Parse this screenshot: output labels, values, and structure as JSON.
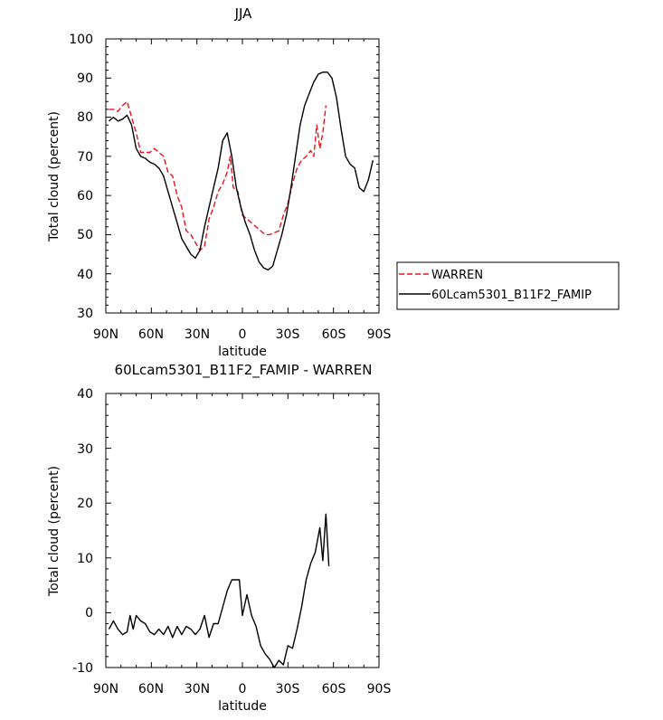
{
  "chart_data": [
    {
      "type": "line",
      "title": "JJA",
      "xlabel": "latitude",
      "ylabel": "Total cloud (percent)",
      "xlim": [
        -90,
        90
      ],
      "ylim": [
        30,
        100
      ],
      "x_ticks": [
        -90,
        -60,
        -30,
        0,
        30,
        60,
        90
      ],
      "x_tick_labels": [
        "90N",
        "60N",
        "30N",
        "0",
        "30S",
        "60S",
        "90S"
      ],
      "y_ticks": [
        30,
        40,
        50,
        60,
        70,
        80,
        90,
        100
      ],
      "y_tick_labels": [
        "30",
        "40",
        "50",
        "60",
        "70",
        "80",
        "90",
        "100"
      ],
      "legend": {
        "position": "right",
        "entries": [
          "WARREN",
          "60Lcam5301_B11F2_FAMIP"
        ]
      },
      "series": [
        {
          "name": "WARREN",
          "color": "#e8141b",
          "style": "dashed",
          "x": [
            -88,
            -85,
            -82,
            -79,
            -76,
            -73,
            -70,
            -67,
            -64,
            -61,
            -58,
            -55,
            -52,
            -49,
            -46,
            -43,
            -40,
            -37,
            -34,
            -31,
            -28,
            -25,
            -22,
            -19,
            -16,
            -13,
            -10,
            -8,
            -6,
            -3,
            0,
            3,
            6,
            9,
            12,
            15,
            18,
            21,
            24,
            27,
            30,
            33,
            36,
            39,
            42,
            45,
            47,
            49,
            51,
            53,
            55,
            57
          ],
          "y": [
            82,
            82,
            81.5,
            83,
            84,
            80,
            76,
            71,
            71,
            71,
            72,
            71,
            70,
            66,
            65,
            60,
            57,
            51,
            50,
            48,
            46,
            47,
            54,
            57,
            61,
            63,
            66,
            70,
            62,
            61,
            55,
            54,
            53,
            52,
            51,
            50,
            50,
            50.5,
            51,
            55,
            58,
            63,
            67,
            69,
            70,
            71.5,
            70,
            78,
            72,
            76,
            83,
            null
          ]
        },
        {
          "name": "60Lcam5301_B11F2_FAMIP",
          "color": "#000000",
          "style": "solid",
          "x": [
            -88,
            -85,
            -82,
            -79,
            -76,
            -73,
            -70,
            -67,
            -64,
            -61,
            -58,
            -55,
            -52,
            -49,
            -46,
            -43,
            -40,
            -37,
            -34,
            -31,
            -28,
            -25,
            -22,
            -19,
            -16,
            -13,
            -10,
            -7,
            -4,
            -1,
            2,
            5,
            8,
            11,
            14,
            17,
            20,
            23,
            26,
            29,
            32,
            35,
            38,
            41,
            44,
            47,
            50,
            53,
            56,
            59,
            62,
            65,
            68,
            71,
            74,
            77,
            80,
            83,
            86
          ],
          "y": [
            79,
            80,
            79,
            79.5,
            80.5,
            78,
            72,
            70,
            69.5,
            68.5,
            68,
            67,
            65,
            61,
            57,
            53,
            49,
            47,
            45,
            44,
            46,
            52,
            57,
            62,
            67,
            74,
            76,
            70,
            62,
            57,
            53,
            50,
            46,
            43,
            41.5,
            41,
            42,
            46,
            50,
            55,
            62,
            70,
            78,
            83,
            86,
            89,
            91,
            91.5,
            91.5,
            90,
            85,
            77,
            70,
            68,
            67,
            62,
            61,
            64,
            69
          ]
        }
      ]
    },
    {
      "type": "line",
      "title": "60Lcam5301_B11F2_FAMIP - WARREN",
      "xlabel": "latitude",
      "ylabel": "Total cloud (percent)",
      "xlim": [
        -90,
        90
      ],
      "ylim": [
        -10,
        40
      ],
      "x_ticks": [
        -90,
        -60,
        -30,
        0,
        30,
        60,
        90
      ],
      "x_tick_labels": [
        "90N",
        "60N",
        "30N",
        "0",
        "30S",
        "60S",
        "90S"
      ],
      "y_ticks": [
        -10,
        0,
        10,
        20,
        30,
        40
      ],
      "y_tick_labels": [
        "-10",
        "0",
        "10",
        "20",
        "30",
        "40"
      ],
      "series": [
        {
          "name": "60Lcam5301_B11F2_FAMIP - WARREN",
          "color": "#000000",
          "style": "solid",
          "x": [
            -88,
            -85,
            -82,
            -79,
            -76,
            -74,
            -72,
            -70,
            -67,
            -64,
            -61,
            -58,
            -55,
            -52,
            -49,
            -46,
            -43,
            -40,
            -37,
            -34,
            -31,
            -28,
            -25,
            -22,
            -19,
            -16,
            -13,
            -10,
            -7,
            -4,
            -2,
            0,
            3,
            6,
            9,
            12,
            15,
            18,
            21,
            24,
            27,
            30,
            33,
            36,
            39,
            42,
            45,
            48,
            51,
            53,
            55,
            57
          ],
          "y": [
            -3,
            -1.5,
            -3,
            -4,
            -3.5,
            -0.5,
            -3,
            -0.5,
            -1.5,
            -2,
            -3.5,
            -4,
            -3,
            -4,
            -2.5,
            -4.5,
            -2.5,
            -4,
            -2.5,
            -3,
            -4,
            -3,
            -0.5,
            -4.5,
            -2,
            -2,
            1,
            4,
            6,
            6,
            6,
            -0.5,
            3.3,
            -0.5,
            -2.5,
            -6,
            -7.5,
            -8.5,
            -10,
            -8.7,
            -9.5,
            -6,
            -6.5,
            -3,
            1,
            6,
            9,
            11,
            15.5,
            9.5,
            18,
            8.5
          ]
        }
      ]
    }
  ]
}
